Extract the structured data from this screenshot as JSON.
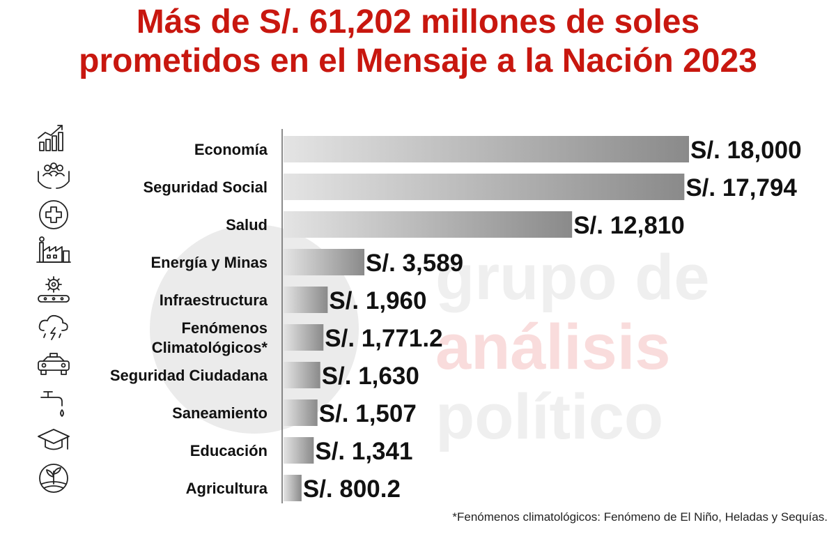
{
  "title_lines": [
    "Más de S/. 61,202 millones de soles",
    "prometidos en el Mensaje a la Nación 2023"
  ],
  "watermark": {
    "lines": [
      "grupo de",
      "análisis",
      "político"
    ]
  },
  "footnote": "*Fenómenos climatológicos: Fenómeno de El Niño, Heladas y Sequías.",
  "colors": {
    "title": "#c8170f",
    "bar_start": "#e4e4e4",
    "bar_end": "#8a8a8a",
    "axis": "#666666",
    "label": "#111111"
  },
  "chart_data": {
    "type": "bar",
    "orientation": "horizontal",
    "categories": [
      [
        "Economía"
      ],
      [
        "Seguridad Social"
      ],
      [
        "Salud"
      ],
      [
        "Energía y Minas"
      ],
      [
        "Infraestructura"
      ],
      [
        "Fenómenos",
        "Climatológicos*"
      ],
      [
        "Seguridad Ciudadana"
      ],
      [
        "Saneamiento"
      ],
      [
        "Educación"
      ],
      [
        "Agricultura"
      ]
    ],
    "values": [
      18000,
      17794,
      12810,
      3589,
      1960,
      1771.2,
      1630,
      1507,
      1341,
      800.2
    ],
    "value_labels": [
      "S/. 18,000",
      "S/. 17,794",
      "S/. 12,810",
      "S/. 3,589",
      "S/. 1,960",
      "S/. 1,771.2",
      "S/. 1,630",
      "S/. 1,507",
      "S/. 1,341",
      "S/. 800.2"
    ],
    "icons": [
      "economy-chart-icon",
      "social-care-icon",
      "health-cross-icon",
      "factory-icon",
      "conveyor-gear-icon",
      "storm-cloud-icon",
      "police-car-icon",
      "water-tap-icon",
      "graduation-cap-icon",
      "plant-field-icon"
    ],
    "xlim": [
      0,
      18000
    ],
    "grid": false,
    "legend": "none"
  }
}
